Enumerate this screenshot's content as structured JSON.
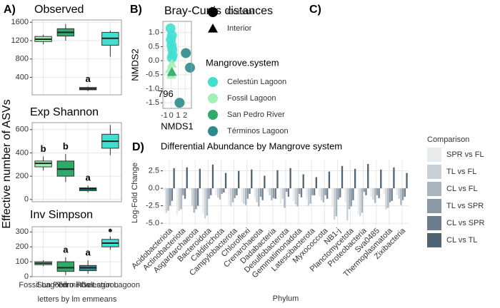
{
  "figure": {
    "panel_labels": [
      "A)",
      "B)",
      "C)",
      "D)"
    ],
    "ylabel": "Effective number of ASVs",
    "xlabel": "letters by lm emmeans"
  },
  "chart_data": [
    {
      "type": "box",
      "title": "Observed",
      "colors": [
        "#a3f0b4",
        "#2eaa6a",
        "#2e8b8b",
        "#40e0d0"
      ],
      "boxes": [
        {
          "min": 1120,
          "q1": 1180,
          "median": 1230,
          "q3": 1290,
          "max": 1330
        },
        {
          "min": 1200,
          "q1": 1300,
          "median": 1380,
          "q3": 1460,
          "max": 1560
        },
        {
          "min": 100,
          "q1": 130,
          "median": 150,
          "q3": 180,
          "max": 200
        },
        {
          "min": 850,
          "q1": 1100,
          "median": 1250,
          "q3": 1380,
          "max": 1420
        }
      ],
      "letters": [
        null,
        null,
        "a",
        null
      ],
      "outliers": [],
      "ylim": [
        20,
        1650
      ],
      "yticks": [
        400,
        800,
        1200,
        1600
      ]
    },
    {
      "type": "box",
      "title": "Exp Shannon",
      "colors": [
        "#a3f0b4",
        "#2eaa6a",
        "#2e8b8b",
        "#40e0d0"
      ],
      "boxes": [
        {
          "min": 250,
          "q1": 280,
          "median": 310,
          "q3": 330,
          "max": 370
        },
        {
          "min": 150,
          "q1": 200,
          "median": 260,
          "q3": 330,
          "max": 390
        },
        {
          "min": 60,
          "q1": 75,
          "median": 90,
          "q3": 100,
          "max": 120
        },
        {
          "min": 380,
          "q1": 440,
          "median": 500,
          "q3": 560,
          "max": 640
        }
      ],
      "letters": [
        "b",
        "b",
        "a",
        null
      ],
      "outliers": [],
      "ylim": [
        -20,
        660
      ],
      "yticks": [
        0,
        200,
        400,
        600
      ]
    },
    {
      "type": "box",
      "title": "Inv Simpson",
      "colors": [
        "#a3f0b4",
        "#2eaa6a",
        "#2e8b8b",
        "#40e0d0"
      ],
      "categories": [
        "Fossil Lagoon",
        "San Pedro River",
        "Términos Lagoon",
        "Celestún Lagoon"
      ],
      "boxes": [
        {
          "min": 70,
          "q1": 80,
          "median": 90,
          "q3": 100,
          "max": 110
        },
        {
          "min": 10,
          "q1": 35,
          "median": 60,
          "q3": 100,
          "max": 130
        },
        {
          "min": 20,
          "q1": 40,
          "median": 60,
          "q3": 75,
          "max": 110
        },
        {
          "min": 180,
          "q1": 200,
          "median": 225,
          "q3": 250,
          "max": 270
        }
      ],
      "letters": [
        null,
        "a",
        "a",
        null
      ],
      "outliers": [
        {
          "index": 3,
          "value": 310
        }
      ],
      "ylim": [
        0,
        335
      ],
      "yticks": [
        0,
        100,
        200,
        300
      ]
    },
    {
      "type": "scatter",
      "title": "Bray-Curtis distances",
      "xlabel": "NMDS1",
      "ylabel": "NMDS2",
      "legend_title": "Mangrove.system",
      "shape_legend": [
        {
          "label": "Coastal",
          "shape": "circle"
        },
        {
          "label": "Interior",
          "shape": "triangle"
        }
      ],
      "series": [
        {
          "name": "Celestún Lagoon",
          "color": "#40e0d0",
          "shape": "circle",
          "x": [
            -0.1,
            0.1,
            -0.05,
            0.05,
            0.15,
            0.2,
            0.1
          ],
          "values": [
            1.15,
            0.9,
            0.75,
            0.55,
            0.4,
            0.2,
            0.1
          ]
        },
        {
          "name": "Fossil Lagoon",
          "color": "#a3f0b4",
          "shape": "triangle",
          "x": [
            -0.2,
            0.1,
            0.0
          ],
          "values": [
            -0.3,
            -0.1,
            -0.5
          ]
        },
        {
          "name": "San Pedro River",
          "color": "#2eaa6a",
          "shape": "triangle",
          "x": [
            0.1
          ],
          "values": [
            -0.4
          ]
        },
        {
          "name": "Términos Lagoon",
          "color": "#2e8b8b",
          "shape": "circle",
          "x": [
            2.1,
            2.7,
            1.2
          ],
          "values": [
            0.27,
            -0.25,
            -1.5
          ]
        }
      ],
      "annotations": [
        {
          "text": "796",
          "x": -0.8,
          "y": -1.2
        }
      ],
      "xlim": [
        -1.2,
        2.9
      ],
      "ylim": [
        -1.7,
        1.4
      ],
      "xticks": [
        -1,
        0,
        1,
        2
      ],
      "yticks": [
        {
          "value": 1,
          "label": "1.0"
        },
        0.5,
        {
          "value": 0,
          "label": "0.0"
        },
        -0.5,
        {
          "value": -1,
          "label": "-1.0"
        },
        -1.5
      ]
    },
    {
      "type": "bar",
      "title": "Differential Abundance by Mangrove system",
      "xlabel": "Phylum",
      "ylabel": "Log-Fold Change",
      "legend_title": "Comparison",
      "categories": [
        "Acidobacteriota",
        "Actinobacteriota",
        "Asgardarchaeota",
        "Bacteroidota",
        "Calditrichota",
        "Campylobacterota",
        "Chloroflexi",
        "Crenarchaeota",
        "Dadabacteria",
        "Desulfobacterota",
        "Gemmatimonadota",
        "Latescibacterota",
        "Myxococcota",
        "NB1-j",
        "Planctomycetota",
        "Proteobacteria",
        "Sva0485",
        "Thermoplasmatota",
        "Zixibacteria"
      ],
      "series": [
        {
          "name": "SPR vs FL",
          "color": "#e8ebee",
          "values": [
            -0.3,
            -3.8,
            -0.2,
            -3.6,
            -1.0,
            -2.5,
            -2.0,
            -1.5,
            -0.5,
            -2.2,
            -1.8,
            -1.5,
            -1.2,
            -2.7,
            -2.0,
            -3.7,
            -1.2,
            -0.8,
            -1.0
          ]
        },
        {
          "name": "TL vs FL",
          "color": "#c9d0d6",
          "values": [
            -3.5,
            -3.2,
            -2.5,
            -4.3,
            -1.3,
            -2.6,
            -2.2,
            -2.0,
            -1.0,
            -1.5,
            -2.3,
            -2.5,
            -1.7,
            -4.5,
            -4.6,
            -4.0,
            -1.6,
            -3.0,
            -1.5
          ]
        },
        {
          "name": "CL vs FL",
          "color": "#a9b4bd",
          "values": [
            -3.2,
            -3.0,
            -3.5,
            -3.9,
            -1.6,
            -2.0,
            -2.4,
            -2.6,
            -1.7,
            -2.8,
            -2.6,
            -2.2,
            -2.0,
            -4.0,
            -3.0,
            -3.5,
            -2.1,
            -2.8,
            -2.4
          ]
        },
        {
          "name": "TL vs SPR",
          "color": "#8a99a5",
          "values": [
            -2.5,
            -1.0,
            -3.0,
            -1.5,
            -0.8,
            -1.4,
            -1.5,
            -1.2,
            -1.4,
            -0.5,
            -0.8,
            -1.0,
            -1.0,
            -1.6,
            -2.6,
            -0.5,
            -1.0,
            -2.0,
            -1.7
          ]
        },
        {
          "name": "CL vs SPR",
          "color": "#6b7d8c",
          "values": [
            -1.8,
            -1.5,
            -2.5,
            -1.0,
            -0.6,
            -1.0,
            -0.8,
            -1.7,
            -1.5,
            -1.2,
            -1.3,
            -1.0,
            -1.5,
            -1.3,
            -1.7,
            -1.0,
            -1.4,
            -1.8,
            -1.2
          ]
        },
        {
          "name": "CL vs TL",
          "color": "#4f6373",
          "values": [
            2.9,
            3.0,
            2.8,
            3.4,
            2.2,
            2.5,
            2.7,
            1.8,
            2.6,
            2.9,
            2.0,
            1.6,
            2.4,
            3.2,
            2.8,
            3.5,
            2.7,
            3.0,
            2.2
          ]
        }
      ],
      "ylim": [
        -5.3,
        4.0
      ],
      "yticks": [
        2.5,
        {
          "value": 0,
          "label": "0.0"
        },
        -2.5,
        {
          "value": -5,
          "label": "-5.0"
        }
      ]
    }
  ]
}
